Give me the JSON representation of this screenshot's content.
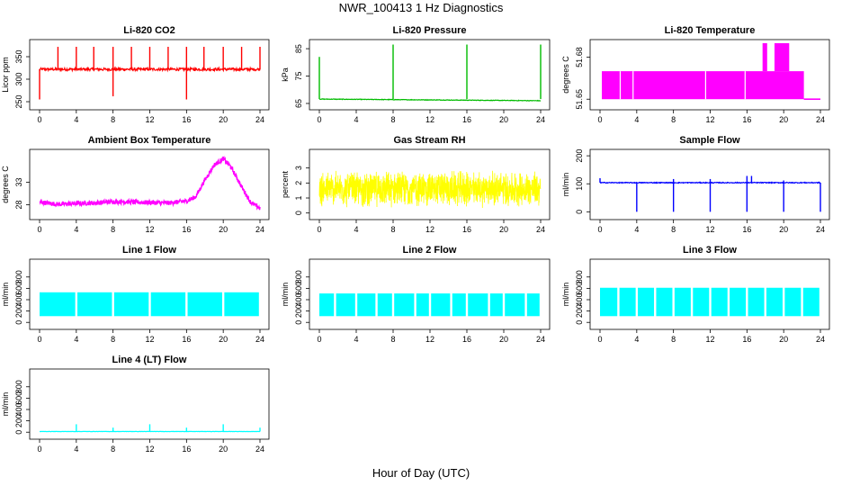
{
  "page": {
    "title": "NWR_100413 1 Hz Diagnostics",
    "xlabel": "Hour of Day (UTC)"
  },
  "chart_data": [
    {
      "type": "line",
      "title": "Li-820 CO2",
      "ylabel": "Licor ppm",
      "color": "#ff0000",
      "ylim": [
        240,
        380
      ],
      "yticks": [
        250,
        300,
        350
      ],
      "xlim": [
        0,
        24
      ],
      "xticks": [
        0,
        4,
        8,
        12,
        16,
        20,
        24
      ],
      "baseline": 322,
      "noise": 3,
      "spikes_up": [
        [
          2,
          372
        ],
        [
          4,
          372
        ],
        [
          5.9,
          372
        ],
        [
          8,
          372
        ],
        [
          10,
          372
        ],
        [
          12,
          372
        ],
        [
          14,
          372
        ],
        [
          16,
          372
        ],
        [
          17.9,
          372
        ],
        [
          20,
          372
        ],
        [
          22,
          372
        ],
        [
          24,
          372
        ]
      ],
      "spikes_down": [
        [
          0,
          255
        ],
        [
          8,
          262
        ],
        [
          16,
          255
        ]
      ]
    },
    {
      "type": "line",
      "title": "Li-820 Pressure",
      "ylabel": "kPa",
      "color": "#00bb00",
      "ylim": [
        64,
        87
      ],
      "yticks": [
        65,
        75,
        85
      ],
      "xlim": [
        0,
        24
      ],
      "xticks": [
        0,
        4,
        8,
        12,
        16,
        20,
        24
      ],
      "baseline_start": 66.6,
      "baseline_end": 66.0,
      "noise": 0.1,
      "spikes_up": [
        [
          0,
          82
        ],
        [
          8,
          86.5
        ],
        [
          16,
          86.5
        ],
        [
          24,
          86.5
        ]
      ],
      "spikes_down": []
    },
    {
      "type": "step",
      "title": "Li-820 Temperature",
      "ylabel": "degrees C",
      "color": "#ff00ff",
      "ylim": [
        51.645,
        51.69
      ],
      "yticks": [
        51.65,
        51.68
      ],
      "ytick_labels": [
        "51.65",
        "51.68"
      ],
      "xlim": [
        0,
        24
      ],
      "xticks": [
        0,
        4,
        8,
        12,
        16,
        20,
        24
      ],
      "low": 51.65,
      "high": 51.67,
      "top": 51.69,
      "fill_range": [
        0.2,
        22.2
      ],
      "top_ranges": [
        [
          17.7,
          18.2
        ],
        [
          19.0,
          20.6
        ]
      ]
    },
    {
      "type": "line",
      "title": "Ambient Box Temperature",
      "ylabel": "degrees C",
      "color": "#ff00ff",
      "ylim": [
        25.5,
        39.5
      ],
      "yticks": [
        28,
        33
      ],
      "xlim": [
        0,
        24
      ],
      "xticks": [
        0,
        4,
        8,
        12,
        16,
        20,
        24
      ],
      "points": [
        [
          0,
          28.6
        ],
        [
          2,
          28.1
        ],
        [
          4,
          28.3
        ],
        [
          6,
          28.4
        ],
        [
          8,
          28.7
        ],
        [
          10,
          28.6
        ],
        [
          12,
          28.5
        ],
        [
          14,
          28.4
        ],
        [
          16,
          28.8
        ],
        [
          17,
          29.8
        ],
        [
          18,
          33.5
        ],
        [
          19,
          36.8
        ],
        [
          20,
          38.2
        ],
        [
          20.8,
          36.5
        ],
        [
          22,
          32
        ],
        [
          23,
          28.5
        ],
        [
          24,
          27.2
        ]
      ],
      "noise": 0.5
    },
    {
      "type": "band",
      "title": "Gas Stream RH",
      "ylabel": "percent",
      "color": "#ffff00",
      "ylim": [
        -0.2,
        4
      ],
      "yticks": [
        0,
        1,
        2,
        3
      ],
      "xlim": [
        0,
        24
      ],
      "xticks": [
        0,
        4,
        8,
        12,
        16,
        20,
        24
      ],
      "center": 1.6,
      "spread": 1.3
    },
    {
      "type": "line",
      "title": "Sample Flow",
      "ylabel": "ml/min",
      "color": "#0000ff",
      "ylim": [
        -15,
        210
      ],
      "yticks": [
        0,
        100,
        200
      ],
      "xlim": [
        0,
        24
      ],
      "xticks": [
        0,
        4,
        8,
        12,
        16,
        20,
        24
      ],
      "baseline": 104,
      "noise": 1.5,
      "spikes_up": [
        [
          0,
          120
        ],
        [
          8,
          117
        ],
        [
          12,
          117
        ],
        [
          16,
          128
        ],
        [
          16.5,
          128
        ],
        [
          20,
          112
        ]
      ],
      "spikes_down": [
        [
          4,
          0
        ],
        [
          8,
          0
        ],
        [
          12,
          0
        ],
        [
          16,
          0
        ],
        [
          20,
          0
        ],
        [
          24,
          0
        ]
      ]
    },
    {
      "type": "band",
      "title": "Line 1 Flow",
      "ylabel": "ml/min",
      "color": "#00ffff",
      "ylim": [
        -60,
        1050
      ],
      "yticks": [
        0,
        200,
        400,
        600,
        800
      ],
      "xlim": [
        0,
        24
      ],
      "xticks": [
        0,
        4,
        8,
        12,
        16,
        20,
        24
      ],
      "low": 110,
      "high": 530,
      "gaps": [
        4,
        8,
        12,
        16,
        20,
        24
      ]
    },
    {
      "type": "band",
      "title": "Line 2 Flow",
      "ylabel": "ml/min",
      "color": "#00ffff",
      "ylim": [
        -60,
        1050
      ],
      "yticks": [
        0,
        200,
        400,
        600,
        800
      ],
      "xlim": [
        0,
        24
      ],
      "xticks": [
        0,
        4,
        8,
        12,
        16,
        20,
        24
      ],
      "low": 110,
      "high": 510,
      "gaps": [
        1.7,
        4,
        6.2,
        8,
        10.4,
        12,
        14.3,
        16,
        18.4,
        20,
        22.4,
        24
      ]
    },
    {
      "type": "band",
      "title": "Line 3 Flow",
      "ylabel": "ml/min",
      "color": "#00ffff",
      "ylim": [
        -60,
        1050
      ],
      "yticks": [
        0,
        200,
        400,
        600,
        800
      ],
      "xlim": [
        0,
        24
      ],
      "xticks": [
        0,
        4,
        8,
        12,
        16,
        20,
        24
      ],
      "low": 110,
      "high": 610,
      "gaps": [
        2,
        4,
        6,
        8,
        10,
        12,
        14,
        16,
        18,
        20,
        22,
        24
      ]
    },
    {
      "type": "line",
      "title": "Line 4 (LT) Flow",
      "ylabel": "ml/min",
      "color": "#00ffff",
      "ylim": [
        -60,
        1050
      ],
      "yticks": [
        0,
        200,
        400,
        600,
        800
      ],
      "xlim": [
        0,
        24
      ],
      "xticks": [
        0,
        4,
        8,
        12,
        16,
        20,
        24
      ],
      "baseline": 12,
      "noise": 2,
      "spikes_up": [
        [
          4,
          140
        ],
        [
          8,
          80
        ],
        [
          12,
          140
        ],
        [
          16,
          80
        ],
        [
          20,
          140
        ],
        [
          24,
          80
        ]
      ],
      "spikes_down": []
    }
  ]
}
